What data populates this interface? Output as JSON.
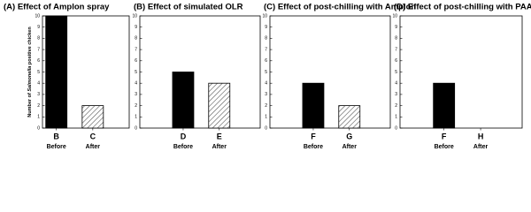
{
  "chart_data": [
    {
      "type": "bar",
      "title": "(A) Effect of Amplon spray",
      "ylabel": [
        "Number of ",
        "Salmonella",
        " positive chicken"
      ],
      "categories": [
        "B",
        "C"
      ],
      "sublabels": [
        "Before",
        "After"
      ],
      "values": [
        10,
        2
      ],
      "color": "#000000",
      "bar_styles": [
        "solid",
        "hatched"
      ],
      "ylim": [
        0,
        10
      ],
      "yticks": [
        0,
        1,
        2,
        3,
        4,
        5,
        6,
        7,
        8,
        9,
        10
      ]
    },
    {
      "type": "bar",
      "title": "(B) Effect of simulated OLR",
      "categories": [
        "D",
        "E"
      ],
      "sublabels": [
        "Before",
        "After"
      ],
      "values": [
        5,
        4
      ],
      "color": "#000000",
      "bar_styles": [
        "solid",
        "hatched"
      ],
      "ylim": [
        0,
        10
      ],
      "yticks": [
        0,
        1,
        2,
        3,
        4,
        5,
        6,
        7,
        8,
        9,
        10
      ]
    },
    {
      "type": "bar",
      "title": "(C) Effect of post-chilling with Amplon",
      "categories": [
        "F",
        "G"
      ],
      "sublabels": [
        "Before",
        "After"
      ],
      "values": [
        4,
        2
      ],
      "color": "#000000",
      "bar_styles": [
        "solid",
        "hatched"
      ],
      "ylim": [
        0,
        10
      ],
      "yticks": [
        0,
        1,
        2,
        3,
        4,
        5,
        6,
        7,
        8,
        9,
        10
      ]
    },
    {
      "type": "bar",
      "title": "(D) Effect of post-chilling with PAA",
      "categories": [
        "F",
        "H"
      ],
      "sublabels": [
        "Before",
        "After"
      ],
      "values": [
        4,
        0
      ],
      "color": "#000000",
      "bar_styles": [
        "solid",
        "hatched"
      ],
      "ylim": [
        0,
        10
      ],
      "yticks": [
        0,
        1,
        2,
        3,
        4,
        5,
        6,
        7,
        8,
        9,
        10
      ]
    }
  ]
}
